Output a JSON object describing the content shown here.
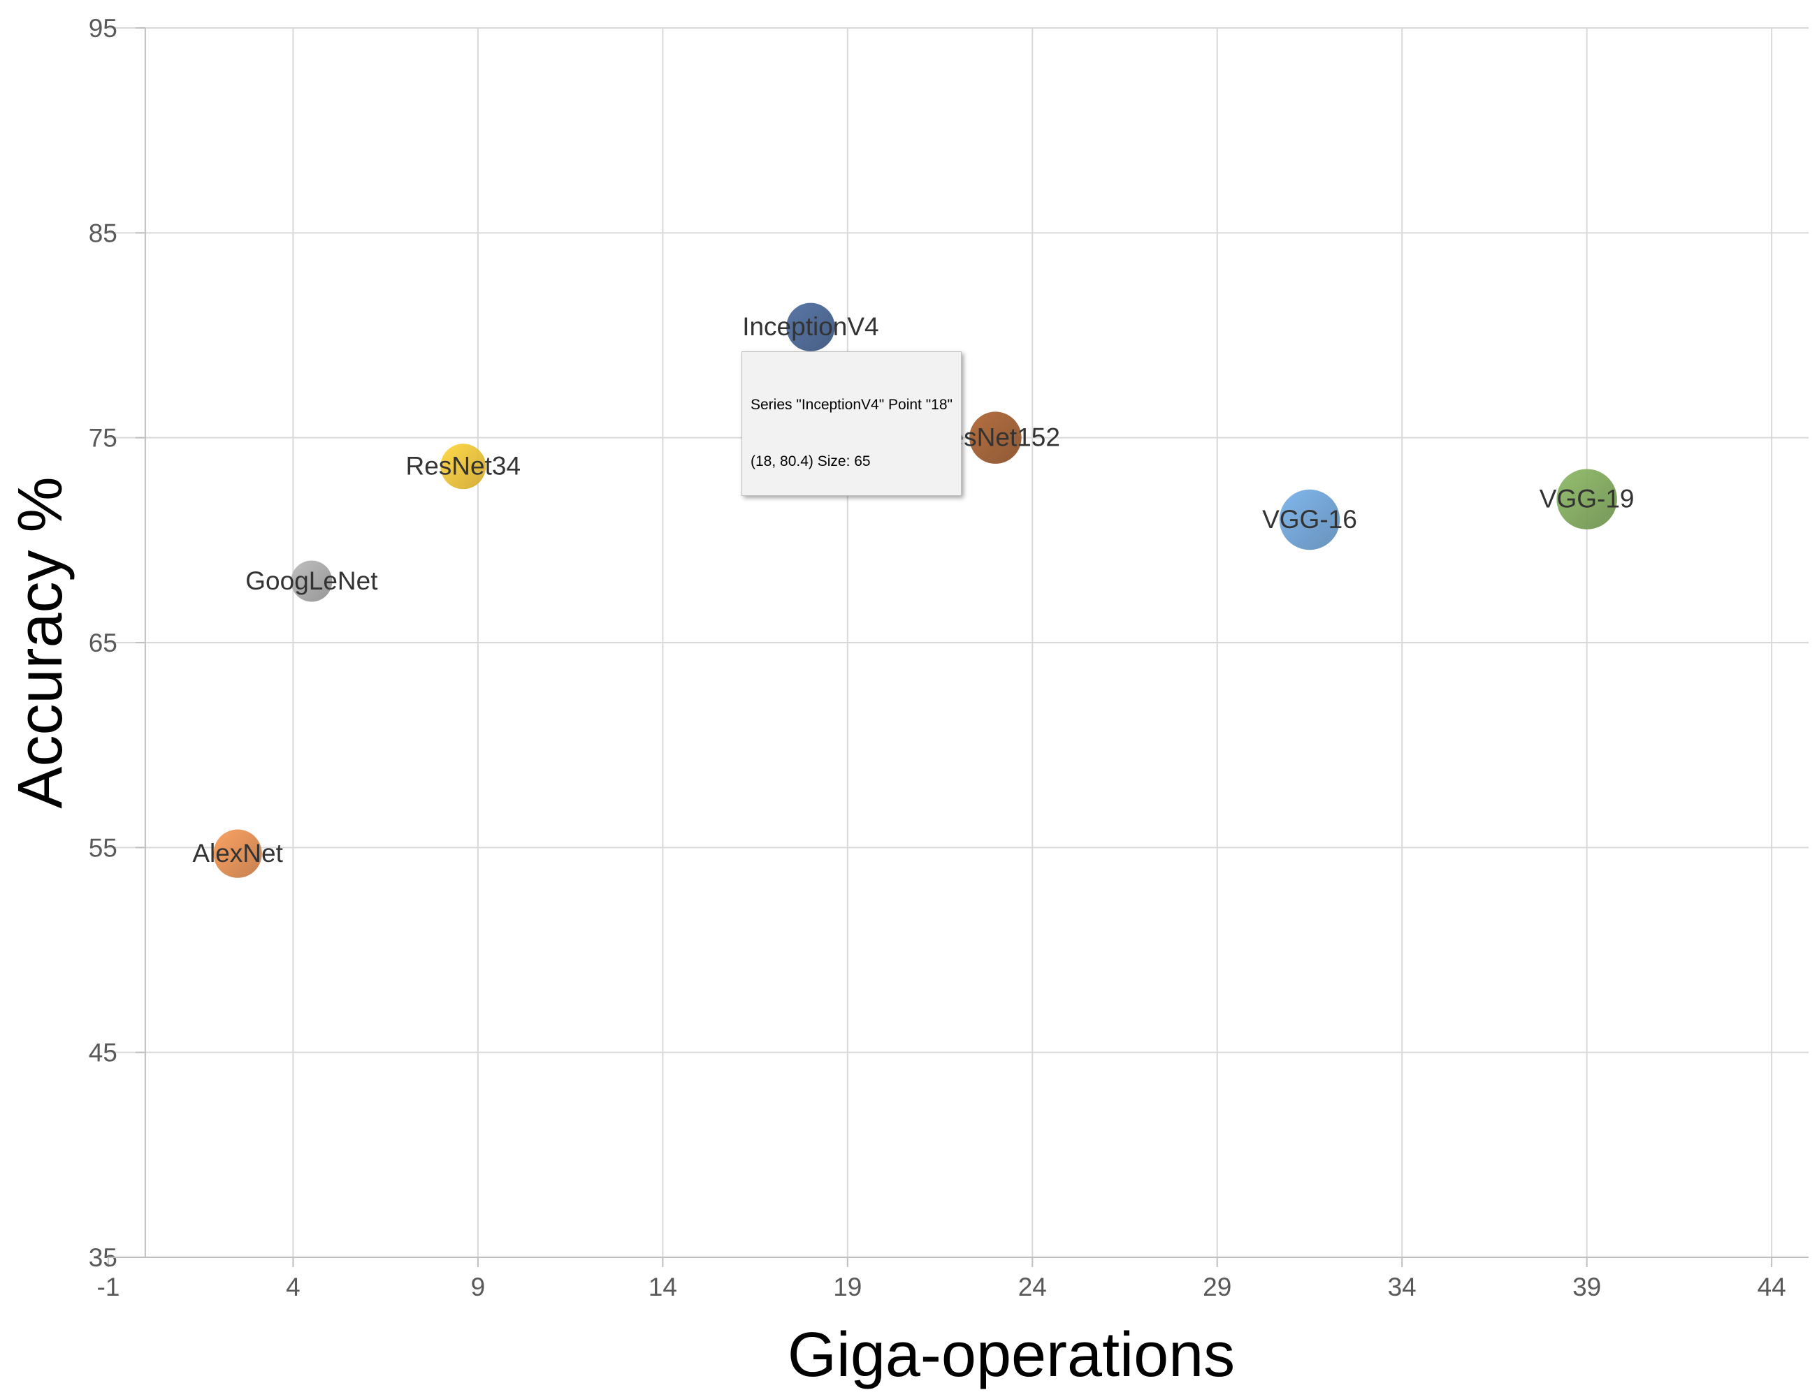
{
  "chart_data": {
    "type": "bubble",
    "xlabel": "Giga-operations",
    "ylabel": "Accuracy %",
    "xlim": [
      -1,
      45
    ],
    "ylim": [
      35,
      95
    ],
    "x_ticks": [
      -1,
      4,
      9,
      14,
      19,
      24,
      29,
      34,
      39,
      44
    ],
    "y_ticks": [
      35,
      45,
      55,
      65,
      75,
      85,
      95
    ],
    "grid": true,
    "series": [
      {
        "name": "AlexNet",
        "x": 2.5,
        "y": 54.7,
        "size": 65,
        "color": "#e08a4e"
      },
      {
        "name": "GoogLeNet",
        "x": 4.5,
        "y": 68.0,
        "size": 47,
        "color": "#a6a6a6"
      },
      {
        "name": "ResNet34",
        "x": 8.6,
        "y": 73.6,
        "size": 57,
        "color": "#f2c136"
      },
      {
        "name": "InceptionV4",
        "x": 18.0,
        "y": 80.4,
        "size": 65,
        "color": "#44608f"
      },
      {
        "name": "ResNet152",
        "x": 23.0,
        "y": 75.0,
        "size": 75,
        "color": "#9c5a2d"
      },
      {
        "name": "VGG-16",
        "x": 31.5,
        "y": 71.0,
        "size": 101,
        "color": "#6b9fd3"
      },
      {
        "name": "VGG-19",
        "x": 39.0,
        "y": 72.0,
        "size": 101,
        "color": "#7ea65a"
      }
    ],
    "tooltip": {
      "line1": "Series \"InceptionV4\" Point \"18\"",
      "line2": "(18, 80.4) Size: 65"
    }
  }
}
